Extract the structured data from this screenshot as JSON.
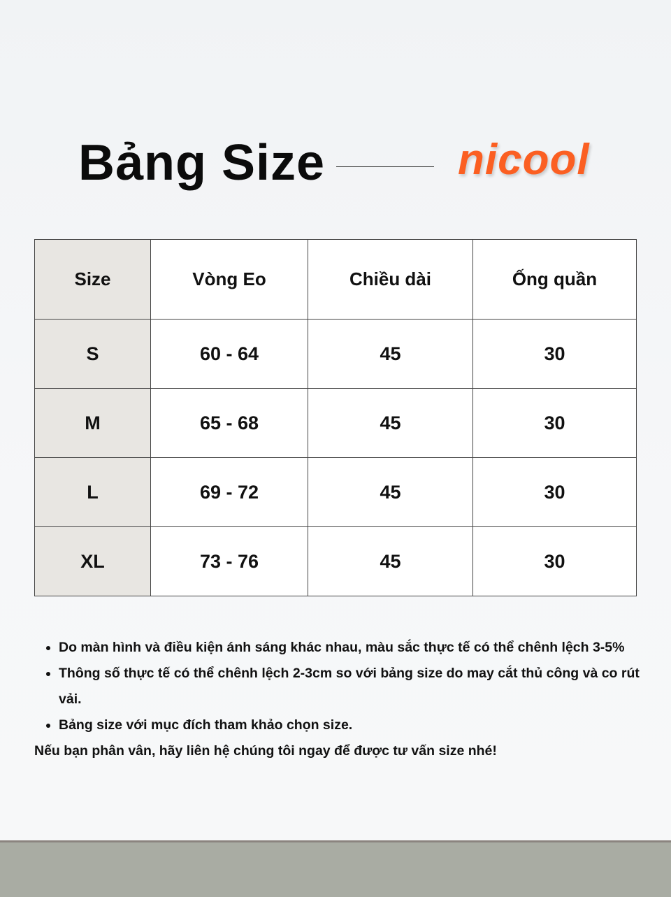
{
  "header": {
    "title": "Bảng Size",
    "brand": "nicool",
    "brand_color": "#fb5f22"
  },
  "table": {
    "columns": [
      "Size",
      "Vòng Eo",
      "Chiều dài",
      "Ống quần"
    ],
    "rows": [
      [
        "S",
        "60 - 64",
        "45",
        "30"
      ],
      [
        "M",
        "65 - 68",
        "45",
        "30"
      ],
      [
        "L",
        "69 - 72",
        "45",
        "30"
      ],
      [
        "XL",
        "73 - 76",
        "45",
        "30"
      ]
    ]
  },
  "notes": {
    "bullets": [
      "Do màn hình và điều kiện ánh sáng khác nhau, màu sắc thực tế có thể chênh lệch 3-5%",
      "Thông số thực tế có thể chênh lệch 2-3cm so với bảng size do may cắt thủ công và co rút vải.",
      "Bảng size với mục đích tham khảo chọn size."
    ],
    "footer": "Nếu bạn phân vân, hãy liên hệ chúng tôi ngay để được tư vấn size nhé!"
  }
}
